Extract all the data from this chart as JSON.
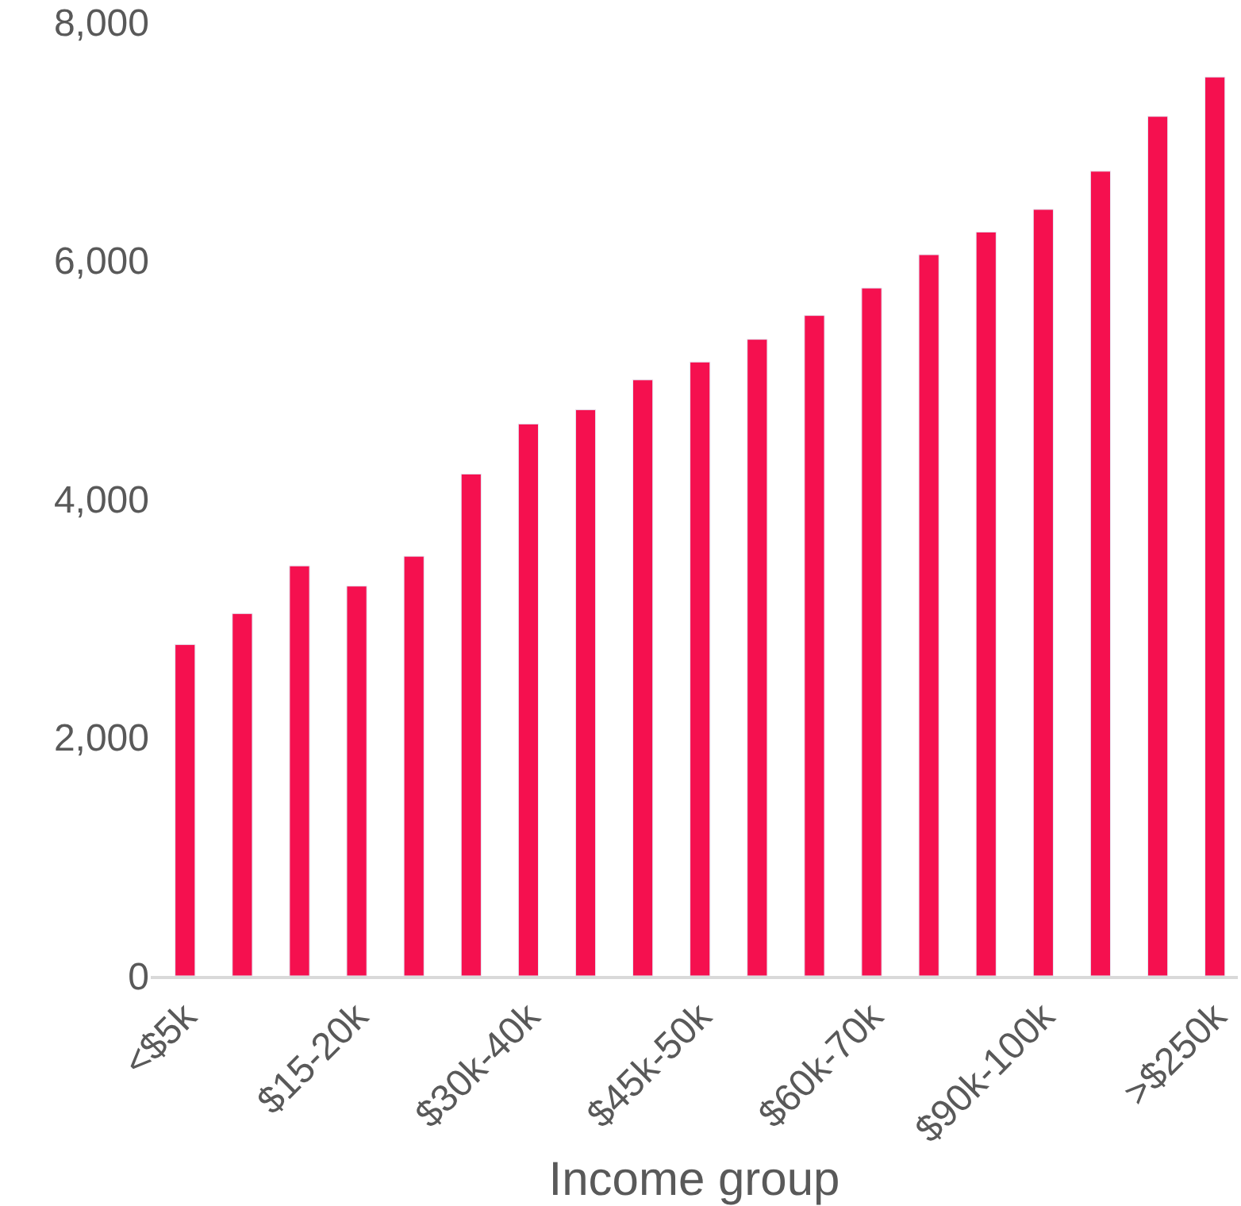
{
  "chart_data": {
    "type": "bar",
    "xlabel": "Income group",
    "categories": [
      "<$5k",
      null,
      null,
      "$15-20k",
      null,
      null,
      "$30k-40k",
      null,
      null,
      "$45k-50k",
      null,
      null,
      "$60k-70k",
      null,
      null,
      "$90k-100k",
      null,
      null,
      ">$250k"
    ],
    "values": [
      2780,
      3040,
      3440,
      3270,
      3520,
      4210,
      4630,
      4750,
      5000,
      5150,
      5340,
      5540,
      5770,
      6050,
      6240,
      6430,
      6750,
      7210,
      7540
    ],
    "color": "#f5104f",
    "ylim": [
      0,
      8000
    ],
    "yticks": [
      {
        "value": 0,
        "label": "0"
      },
      {
        "value": 2000,
        "label": "2,000"
      },
      {
        "value": 4000,
        "label": "4,000"
      },
      {
        "value": 6000,
        "label": "6,000"
      },
      {
        "value": 8000,
        "label": "8,000"
      }
    ],
    "tick_labels": "xy"
  }
}
